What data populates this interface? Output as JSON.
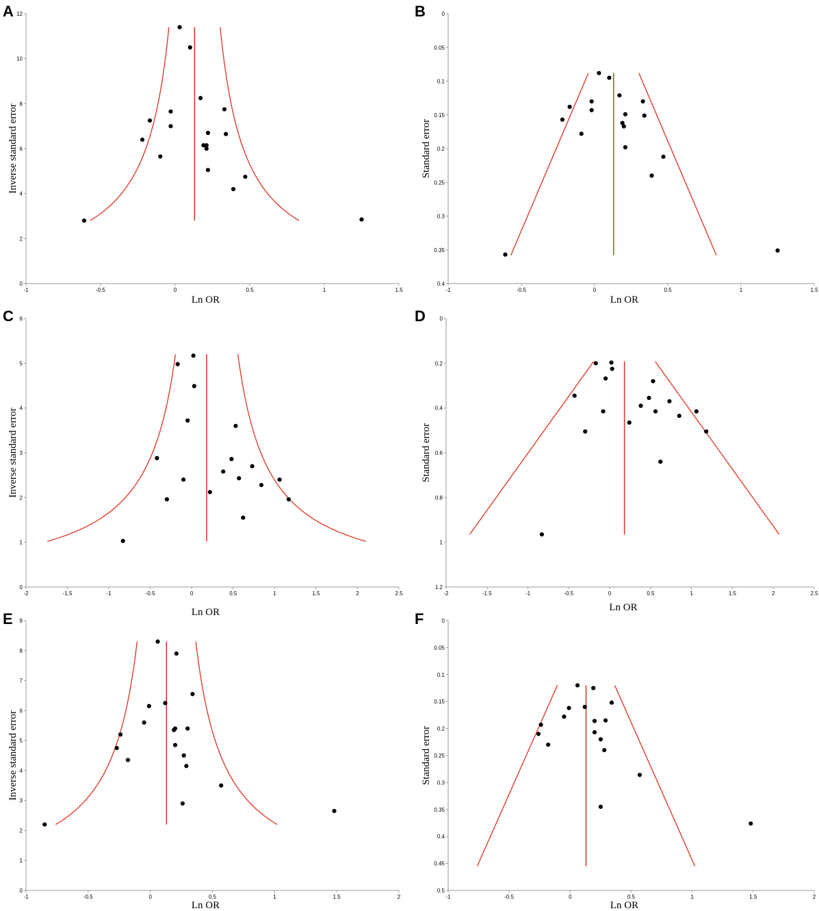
{
  "colors": {
    "funnel": "#e0301e",
    "points": "#000000",
    "axes": "#9a9a9a"
  },
  "chart_data": [
    {
      "panel": "A",
      "type": "scatter",
      "xlabel": "Ln OR",
      "ylabel": "Inverse standard error",
      "xlim": [
        -1,
        1.5
      ],
      "ylim": [
        0,
        12
      ],
      "y_inverted": false,
      "xticks": [
        "-1",
        "-0.5",
        "0",
        "0.5",
        "1",
        "1.5"
      ],
      "yticks": [
        "0",
        "2",
        "4",
        "6",
        "8",
        "10",
        "12"
      ],
      "funnel": {
        "kind": "inverse",
        "center": 0.13,
        "y_min": 2.8,
        "y_max": 11.4
      },
      "points": [
        [
          -0.61,
          2.8
        ],
        [
          -0.22,
          6.4
        ],
        [
          -0.17,
          7.25
        ],
        [
          -0.1,
          5.65
        ],
        [
          -0.03,
          7.0
        ],
        [
          -0.03,
          7.65
        ],
        [
          0.03,
          11.4
        ],
        [
          0.1,
          10.5
        ],
        [
          0.17,
          8.25
        ],
        [
          0.19,
          6.15
        ],
        [
          0.21,
          6.15
        ],
        [
          0.21,
          6.0
        ],
        [
          0.22,
          6.7
        ],
        [
          0.22,
          5.05
        ],
        [
          0.33,
          7.75
        ],
        [
          0.34,
          6.65
        ],
        [
          0.39,
          4.2
        ],
        [
          0.47,
          4.75
        ],
        [
          1.25,
          2.85
        ]
      ]
    },
    {
      "panel": "B",
      "type": "scatter",
      "xlabel": "Ln OR",
      "ylabel": "Standard error",
      "xlim": [
        -1,
        1.5
      ],
      "ylim": [
        0,
        0.4
      ],
      "y_inverted": true,
      "xticks": [
        "-1",
        "-0.5",
        "0",
        "0.5",
        "1",
        "1.5"
      ],
      "yticks": [
        "0",
        "0.05",
        "0.1",
        "0.15",
        "0.2",
        "0.25",
        "0.3",
        "0.35",
        "0.4"
      ],
      "funnel": {
        "kind": "linear",
        "center": 0.13,
        "y_min": 0.088,
        "y_max": 0.358
      },
      "points": [
        [
          -0.61,
          0.357
        ],
        [
          -0.22,
          0.157
        ],
        [
          -0.17,
          0.138
        ],
        [
          -0.09,
          0.178
        ],
        [
          -0.02,
          0.13
        ],
        [
          -0.02,
          0.143
        ],
        [
          0.03,
          0.088
        ],
        [
          0.1,
          0.095
        ],
        [
          0.17,
          0.121
        ],
        [
          0.19,
          0.162
        ],
        [
          0.2,
          0.167
        ],
        [
          0.21,
          0.149
        ],
        [
          0.21,
          0.198
        ],
        [
          0.33,
          0.13
        ],
        [
          0.34,
          0.151
        ],
        [
          0.39,
          0.24
        ],
        [
          0.47,
          0.212
        ],
        [
          1.25,
          0.351
        ]
      ]
    },
    {
      "panel": "C",
      "type": "scatter",
      "xlabel": "Ln OR",
      "ylabel": "Inverse standard error",
      "xlim": [
        -2,
        2.5
      ],
      "ylim": [
        0,
        6
      ],
      "y_inverted": false,
      "xticks": [
        "-2",
        "-1.5",
        "-1",
        "-0.5",
        "0",
        "0.5",
        "1",
        "1.5",
        "2",
        "2.5"
      ],
      "yticks": [
        "0",
        "1",
        "2",
        "3",
        "4",
        "5",
        "6"
      ],
      "funnel": {
        "kind": "inverse",
        "center": 0.18,
        "y_min": 1.02,
        "y_max": 5.2
      },
      "points": [
        [
          -0.83,
          1.03
        ],
        [
          -0.42,
          2.88
        ],
        [
          -0.3,
          1.96
        ],
        [
          -0.17,
          4.98
        ],
        [
          -0.1,
          2.4
        ],
        [
          -0.05,
          3.72
        ],
        [
          0.02,
          5.17
        ],
        [
          0.03,
          4.49
        ],
        [
          0.22,
          2.12
        ],
        [
          0.38,
          2.58
        ],
        [
          0.48,
          2.86
        ],
        [
          0.53,
          3.6
        ],
        [
          0.57,
          2.43
        ],
        [
          0.62,
          1.55
        ],
        [
          0.73,
          2.7
        ],
        [
          0.84,
          2.28
        ],
        [
          1.06,
          2.4
        ],
        [
          1.17,
          1.96
        ]
      ]
    },
    {
      "panel": "D",
      "type": "scatter",
      "xlabel": "Ln OR",
      "ylabel": "Standard error",
      "xlim": [
        -2,
        2.5
      ],
      "ylim": [
        0,
        1.2
      ],
      "y_inverted": true,
      "xticks": [
        "-2",
        "-1.5",
        "-1",
        "-0.5",
        "0",
        "0.5",
        "1",
        "1.5",
        "2",
        "2.5"
      ],
      "yticks": [
        "0",
        "0.2",
        "0.4",
        "0.6",
        "0.8",
        "1",
        "1.2"
      ],
      "funnel": {
        "kind": "linear",
        "center": 0.18,
        "y_min": 0.192,
        "y_max": 0.965
      },
      "points": [
        [
          -0.83,
          0.965
        ],
        [
          -0.43,
          0.345
        ],
        [
          -0.3,
          0.505
        ],
        [
          -0.17,
          0.2
        ],
        [
          -0.08,
          0.415
        ],
        [
          -0.05,
          0.268
        ],
        [
          0.02,
          0.197
        ],
        [
          0.03,
          0.225
        ],
        [
          0.24,
          0.465
        ],
        [
          0.38,
          0.39
        ],
        [
          0.48,
          0.355
        ],
        [
          0.53,
          0.28
        ],
        [
          0.56,
          0.415
        ],
        [
          0.62,
          0.64
        ],
        [
          0.73,
          0.37
        ],
        [
          0.85,
          0.435
        ],
        [
          1.06,
          0.415
        ],
        [
          1.18,
          0.505
        ]
      ]
    },
    {
      "panel": "E",
      "type": "scatter",
      "xlabel": "Ln OR",
      "ylabel": "Inverse standard error",
      "xlim": [
        -1,
        2
      ],
      "ylim": [
        0,
        9
      ],
      "y_inverted": false,
      "xticks": [
        "-1",
        "-0.5",
        "0",
        "0.5",
        "1",
        "1.5",
        "2"
      ],
      "yticks": [
        "0",
        "1",
        "2",
        "3",
        "4",
        "5",
        "6",
        "7",
        "8",
        "9"
      ],
      "funnel": {
        "kind": "inverse",
        "center": 0.13,
        "y_min": 2.2,
        "y_max": 8.3
      },
      "points": [
        [
          -0.85,
          2.2
        ],
        [
          -0.27,
          4.75
        ],
        [
          -0.24,
          5.2
        ],
        [
          -0.18,
          4.35
        ],
        [
          -0.05,
          5.6
        ],
        [
          -0.01,
          6.15
        ],
        [
          0.06,
          8.3
        ],
        [
          0.12,
          6.25
        ],
        [
          0.19,
          5.35
        ],
        [
          0.2,
          5.4
        ],
        [
          0.2,
          4.85
        ],
        [
          0.21,
          7.9
        ],
        [
          0.26,
          2.9
        ],
        [
          0.27,
          4.5
        ],
        [
          0.29,
          4.15
        ],
        [
          0.3,
          5.4
        ],
        [
          0.34,
          6.55
        ],
        [
          0.57,
          3.5
        ],
        [
          1.48,
          2.65
        ]
      ]
    },
    {
      "panel": "F",
      "type": "scatter",
      "xlabel": "Ln OR",
      "ylabel": "Standard error",
      "xlim": [
        -1,
        2
      ],
      "ylim": [
        0,
        0.5
      ],
      "y_inverted": true,
      "xticks": [
        "-1",
        "-0.5",
        "0",
        "0.5",
        "1",
        "1.5",
        "2"
      ],
      "yticks": [
        "0",
        "0.05",
        "0.1",
        "0.15",
        "0.2",
        "0.25",
        "0.3",
        "0.35",
        "0.4",
        "0.45",
        "0.5"
      ],
      "funnel": {
        "kind": "linear",
        "center": 0.13,
        "y_min": 0.12,
        "y_max": 0.455
      },
      "points": [
        [
          -0.26,
          0.21
        ],
        [
          -0.24,
          0.193
        ],
        [
          -0.18,
          0.23
        ],
        [
          -0.05,
          0.178
        ],
        [
          -0.01,
          0.162
        ],
        [
          0.06,
          0.12
        ],
        [
          0.12,
          0.16
        ],
        [
          0.19,
          0.125
        ],
        [
          0.2,
          0.186
        ],
        [
          0.2,
          0.207
        ],
        [
          0.25,
          0.22
        ],
        [
          0.25,
          0.345
        ],
        [
          0.28,
          0.24
        ],
        [
          0.29,
          0.185
        ],
        [
          0.34,
          0.152
        ],
        [
          0.57,
          0.286
        ],
        [
          1.48,
          0.376
        ]
      ]
    }
  ]
}
